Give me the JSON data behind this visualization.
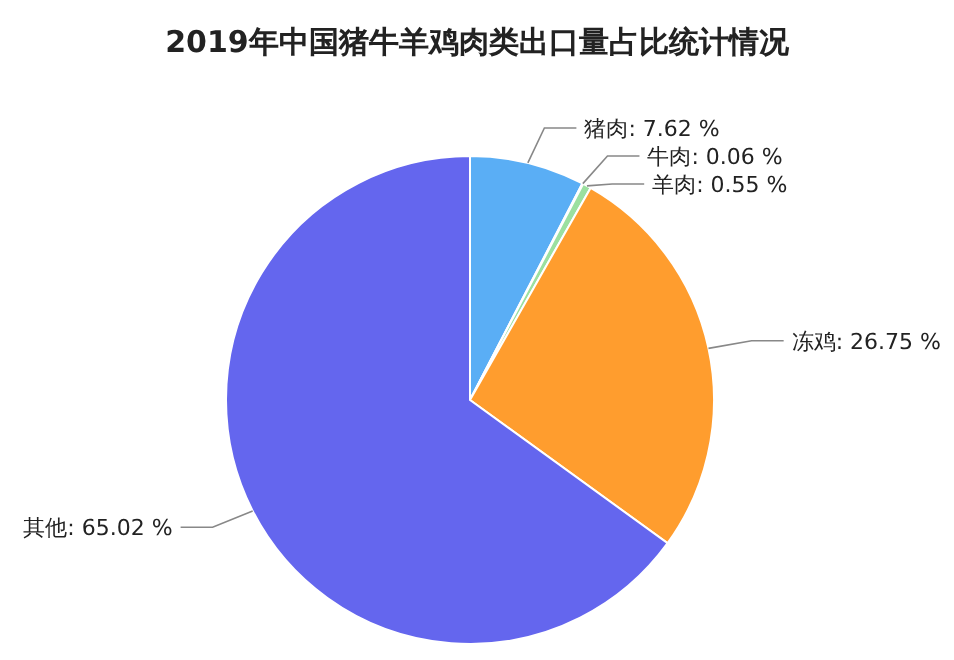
{
  "chart_data": {
    "type": "pie",
    "title": "2019年中国猪牛羊鸡肉类出口量占比统计情况",
    "categories": [
      "猪肉",
      "牛肉",
      "羊肉",
      "冻鸡",
      "其他"
    ],
    "values": [
      7.62,
      0.06,
      0.55,
      26.75,
      65.02
    ],
    "colors": [
      "#5aaef5",
      "#2f2f3a",
      "#9be0a0",
      "#ff9d2e",
      "#6466ee"
    ],
    "value_labels": [
      ": 7.62 %",
      ": 0.06 %",
      ": 0.55 %",
      ": 26.75 %",
      ": 65.02 %"
    ]
  }
}
